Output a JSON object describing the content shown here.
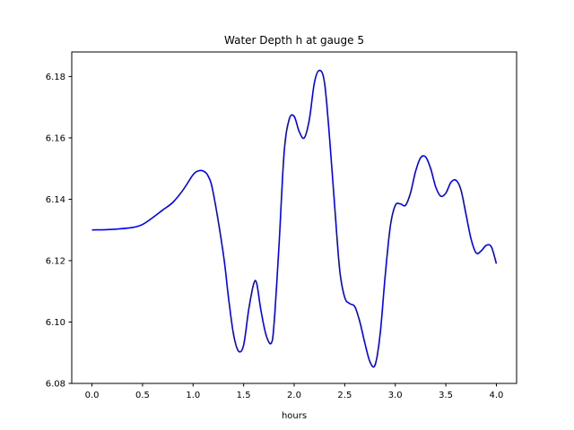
{
  "chart_data": {
    "type": "line",
    "title": "Water Depth h at gauge 5",
    "xlabel": "hours",
    "ylabel": "",
    "xlim": [
      -0.2,
      4.2
    ],
    "ylim": [
      6.08,
      6.188
    ],
    "xticks": [
      0.0,
      0.5,
      1.0,
      1.5,
      2.0,
      2.5,
      3.0,
      3.5,
      4.0
    ],
    "xtick_labels": [
      "0.0",
      "0.5",
      "1.0",
      "1.5",
      "2.0",
      "2.5",
      "3.0",
      "3.5",
      "4.0"
    ],
    "yticks": [
      6.08,
      6.1,
      6.12,
      6.14,
      6.16,
      6.18
    ],
    "ytick_labels": [
      "6.08",
      "6.10",
      "6.12",
      "6.14",
      "6.16",
      "6.18"
    ],
    "grid": false,
    "legend": "none",
    "series": [
      {
        "color": "#0000ff",
        "x": [
          0.0,
          0.2,
          0.4,
          0.5,
          0.6,
          0.7,
          0.8,
          0.9,
          1.0,
          1.05,
          1.1,
          1.15,
          1.2,
          1.3,
          1.35,
          1.4,
          1.45,
          1.5,
          1.55,
          1.6,
          1.63,
          1.67,
          1.72,
          1.77,
          1.8,
          1.85,
          1.9,
          1.95,
          2.0,
          2.05,
          2.1,
          2.15,
          2.2,
          2.25,
          2.3,
          2.35,
          2.4,
          2.45,
          2.5,
          2.55,
          2.6,
          2.65,
          2.7,
          2.75,
          2.8,
          2.85,
          2.9,
          2.95,
          3.0,
          3.05,
          3.1,
          3.15,
          3.2,
          3.25,
          3.3,
          3.35,
          3.4,
          3.45,
          3.5,
          3.55,
          3.6,
          3.65,
          3.7,
          3.75,
          3.8,
          3.85,
          3.9,
          3.95,
          4.0
        ],
        "y": [
          6.13,
          6.1302,
          6.1308,
          6.1318,
          6.134,
          6.1365,
          6.139,
          6.143,
          6.148,
          6.1492,
          6.1492,
          6.1475,
          6.142,
          6.122,
          6.108,
          6.096,
          6.0905,
          6.0925,
          6.104,
          6.1125,
          6.1125,
          6.104,
          6.096,
          6.093,
          6.099,
          6.125,
          6.155,
          6.166,
          6.167,
          6.162,
          6.16,
          6.166,
          6.178,
          6.182,
          6.178,
          6.16,
          6.138,
          6.117,
          6.108,
          6.106,
          6.105,
          6.1,
          6.093,
          6.087,
          6.086,
          6.096,
          6.115,
          6.131,
          6.138,
          6.1385,
          6.138,
          6.142,
          6.149,
          6.1535,
          6.1538,
          6.15,
          6.144,
          6.141,
          6.142,
          6.1455,
          6.1462,
          6.143,
          6.135,
          6.127,
          6.1225,
          6.1232,
          6.125,
          6.1245,
          6.119
        ]
      }
    ]
  }
}
